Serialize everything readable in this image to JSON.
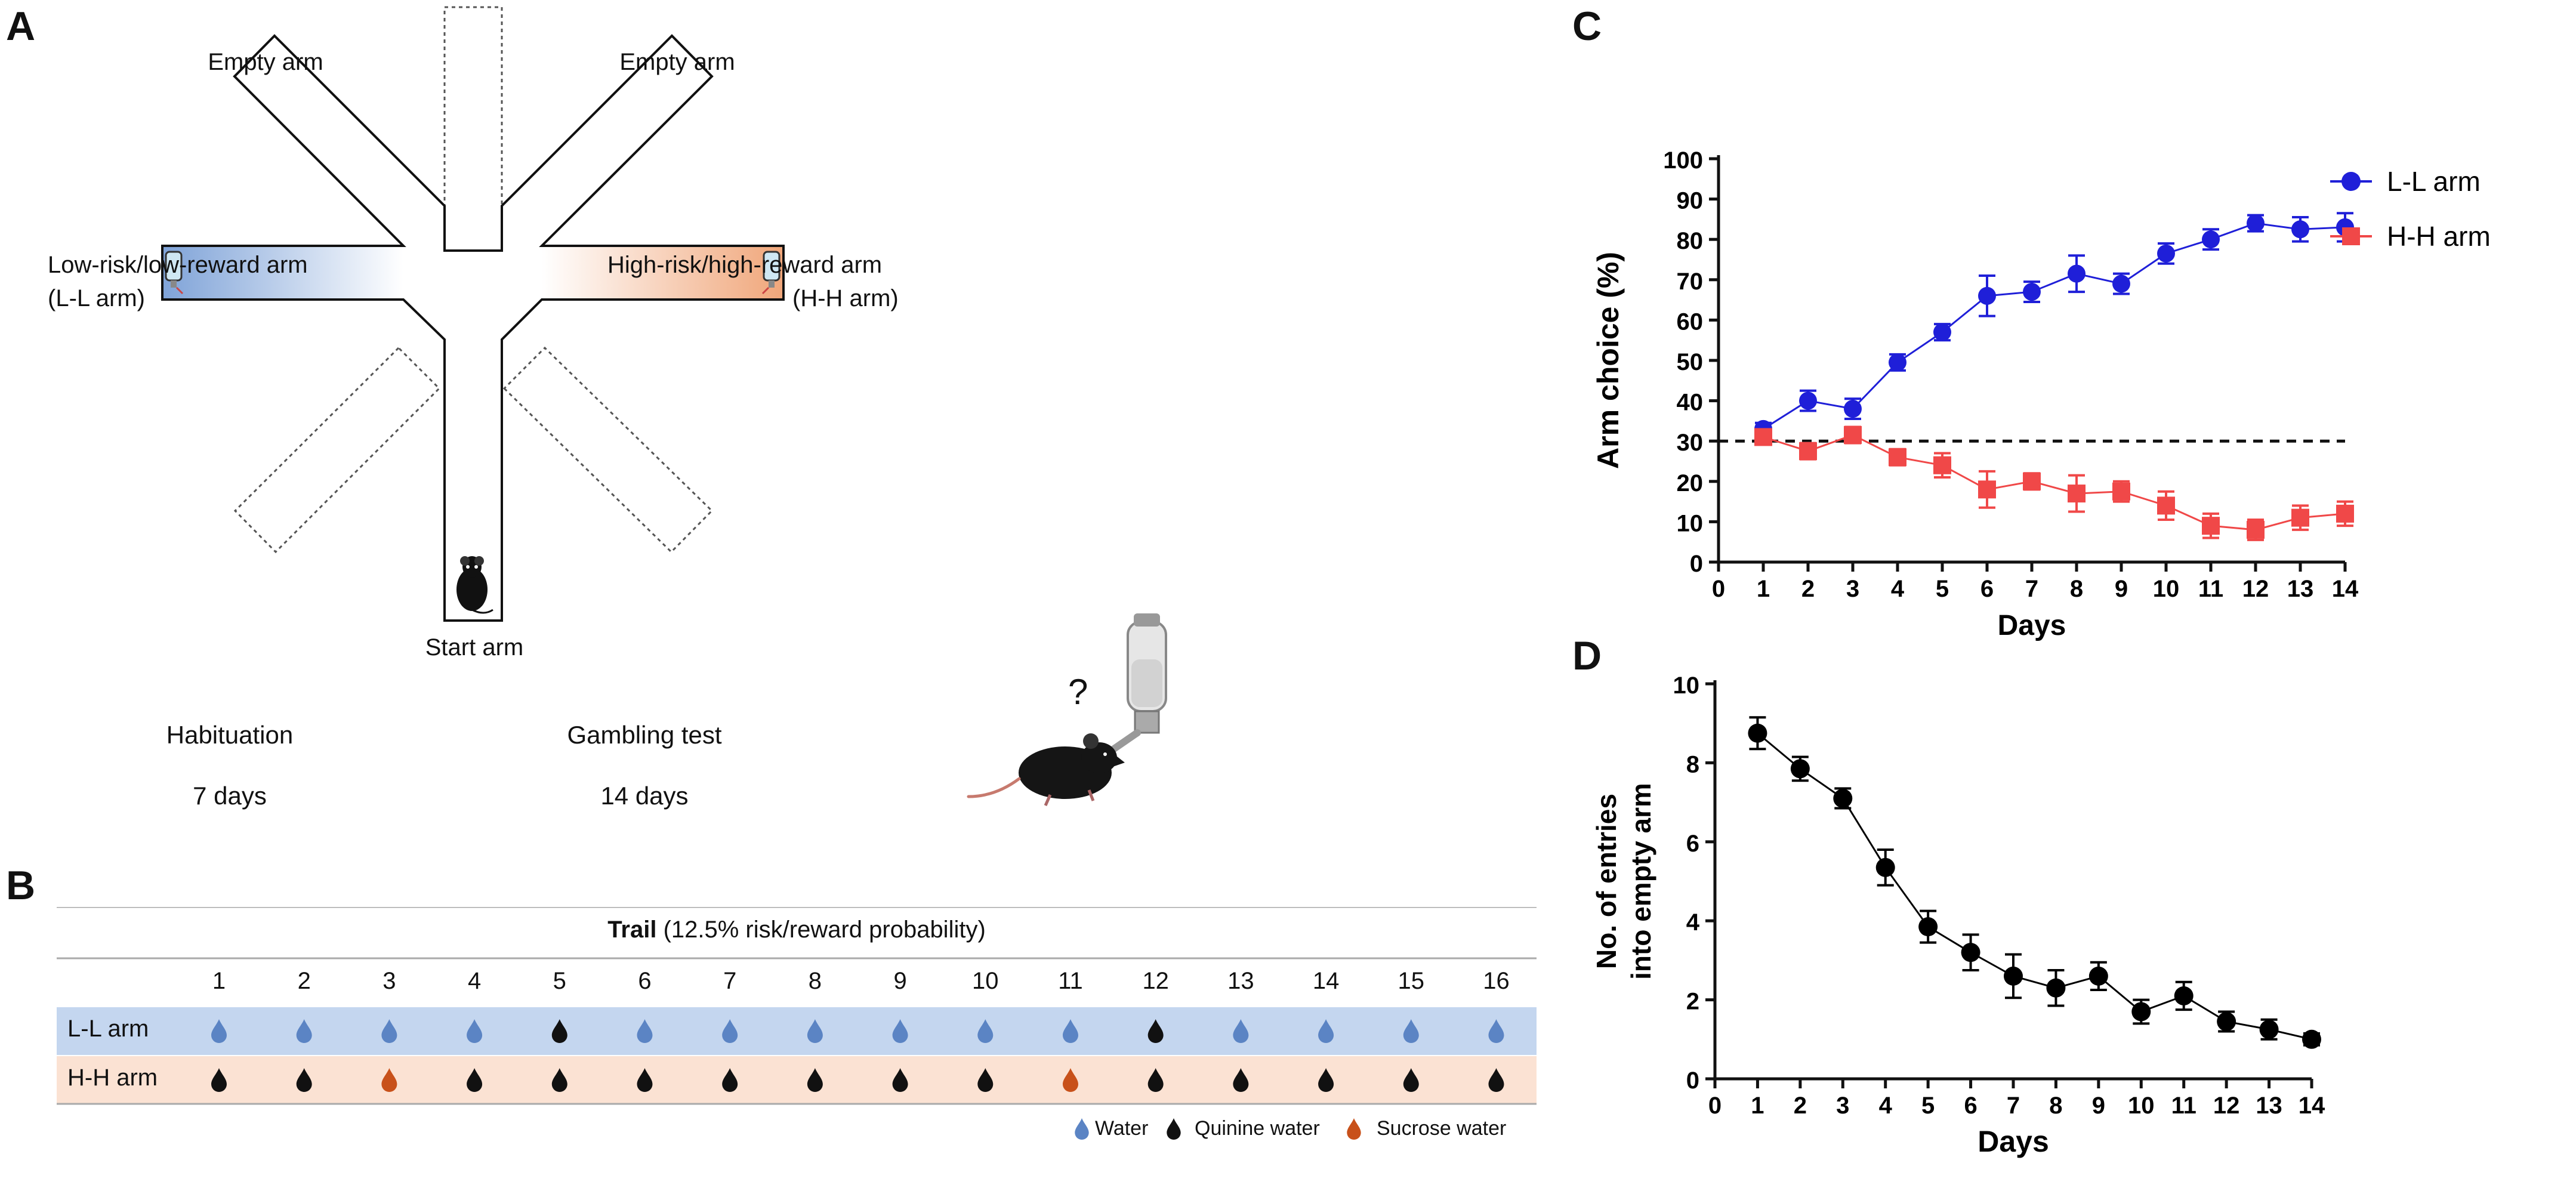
{
  "panels": {
    "a": "A",
    "b": "B",
    "c": "C",
    "d": "D"
  },
  "maze": {
    "empty_arm_left": "Empty arm",
    "empty_arm_right": "Empty arm",
    "ll_arm_line1": "Low-risk/low-reward arm",
    "ll_arm_line2": "(L-L arm)",
    "hh_arm_line1": "High-risk/high-reward arm",
    "hh_arm_line2": "(H-H arm)",
    "start_arm": "Start arm",
    "question": "?"
  },
  "timeline": {
    "habituation_label": "Habituation",
    "habituation_duration": "7 days",
    "gambling_label": "Gambling test",
    "gambling_duration": "14 days"
  },
  "trial_table": {
    "title_bold": "Trail",
    "title_rest": " (12.5% risk/reward probability)",
    "trials": [
      "1",
      "2",
      "3",
      "4",
      "5",
      "6",
      "7",
      "8",
      "9",
      "10",
      "11",
      "12",
      "13",
      "14",
      "15",
      "16"
    ],
    "rows": [
      {
        "label": "L-L arm",
        "drops": [
          "water",
          "water",
          "water",
          "water",
          "quinine",
          "water",
          "water",
          "water",
          "water",
          "water",
          "water",
          "quinine",
          "water",
          "water",
          "water",
          "water"
        ]
      },
      {
        "label": "H-H arm",
        "drops": [
          "quinine",
          "quinine",
          "sucrose",
          "quinine",
          "quinine",
          "quinine",
          "quinine",
          "quinine",
          "quinine",
          "quinine",
          "sucrose",
          "quinine",
          "quinine",
          "quinine",
          "quinine",
          "quinine"
        ]
      }
    ],
    "legend": [
      {
        "key": "water",
        "label": "Water",
        "color": "#5b84c4"
      },
      {
        "key": "quinine",
        "label": "Quinine water",
        "color": "#111111"
      },
      {
        "key": "sucrose",
        "label": "Sucrose water",
        "color": "#c8511a"
      }
    ]
  },
  "chart_data": [
    {
      "type": "line",
      "title": "",
      "xlabel": "Days",
      "ylabel": "Arm choice (%)",
      "xlim": [
        0,
        14
      ],
      "ylim": [
        0,
        100
      ],
      "x_ticks": [
        0,
        1,
        2,
        3,
        4,
        5,
        6,
        7,
        8,
        9,
        10,
        11,
        12,
        13,
        14
      ],
      "y_ticks": [
        0,
        10,
        20,
        30,
        40,
        50,
        60,
        70,
        80,
        90,
        100
      ],
      "reference_line": {
        "y": 30,
        "style": "dashed"
      },
      "legend_position": "top-right",
      "series": [
        {
          "name": "L-L arm",
          "color": "#1f1fd8",
          "marker": "circle",
          "x": [
            1,
            2,
            3,
            4,
            5,
            6,
            7,
            8,
            9,
            10,
            11,
            12,
            13,
            14
          ],
          "values": [
            33,
            40,
            38,
            49.5,
            57,
            66,
            67,
            71.5,
            69,
            76.5,
            80,
            84,
            82.5,
            83
          ],
          "errors": [
            1.5,
            2.5,
            2.5,
            2,
            2,
            5,
            2.5,
            4.5,
            2.5,
            2.5,
            2.5,
            2,
            3,
            3.5
          ]
        },
        {
          "name": "H-H arm",
          "color": "#f04848",
          "marker": "square",
          "x": [
            1,
            2,
            3,
            4,
            5,
            6,
            7,
            8,
            9,
            10,
            11,
            12,
            13,
            14
          ],
          "values": [
            31,
            27.5,
            31.5,
            26,
            24,
            18,
            20,
            17,
            17.5,
            14,
            9,
            8,
            11,
            12
          ],
          "errors": [
            1.5,
            2,
            2,
            2,
            3,
            4.5,
            2,
            4.5,
            2.5,
            3.5,
            3,
            2.5,
            3,
            3
          ]
        }
      ]
    },
    {
      "type": "line",
      "title": "",
      "xlabel": "Days",
      "ylabel_line1": "No. of entries",
      "ylabel_line2": "into empty arm",
      "xlim": [
        0,
        14
      ],
      "ylim": [
        0,
        10
      ],
      "x_ticks": [
        0,
        1,
        2,
        3,
        4,
        5,
        6,
        7,
        8,
        9,
        10,
        11,
        12,
        13,
        14
      ],
      "y_ticks": [
        0,
        2,
        4,
        6,
        8,
        10
      ],
      "series": [
        {
          "name": "Empty arm entries",
          "color": "#000000",
          "marker": "circle",
          "x": [
            1,
            2,
            3,
            4,
            5,
            6,
            7,
            8,
            9,
            10,
            11,
            12,
            13,
            14
          ],
          "values": [
            8.75,
            7.85,
            7.1,
            5.35,
            3.85,
            3.2,
            2.6,
            2.3,
            2.6,
            1.7,
            2.1,
            1.45,
            1.25,
            1.0
          ],
          "errors": [
            0.4,
            0.3,
            0.25,
            0.45,
            0.4,
            0.45,
            0.55,
            0.45,
            0.35,
            0.3,
            0.35,
            0.25,
            0.25,
            0.15
          ]
        }
      ]
    }
  ]
}
